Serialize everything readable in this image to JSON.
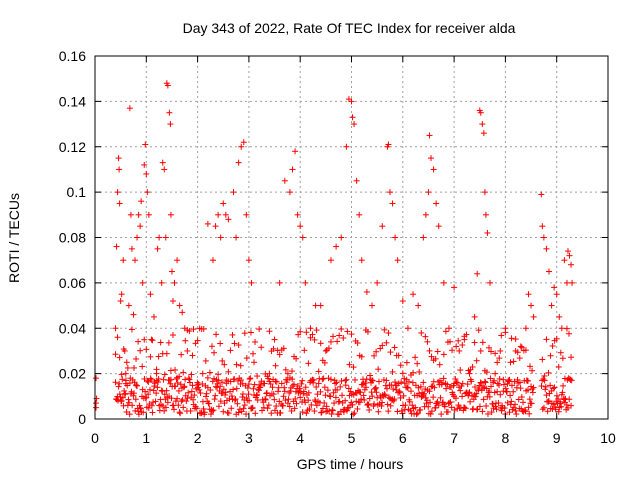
{
  "chart_data": {
    "type": "scatter",
    "title": "Day 343 of 2022, Rate Of TEC Index for receiver alda",
    "xlabel": "GPS time / hours",
    "ylabel": "ROTI / TECUs",
    "xlim": [
      0,
      10
    ],
    "ylim": [
      0,
      0.16
    ],
    "xticks": [
      "0",
      "1",
      "2",
      "3",
      "4",
      "5",
      "6",
      "7",
      "8",
      "9",
      "10"
    ],
    "yticks": [
      "0",
      "0.02",
      "0.04",
      "0.06",
      "0.08",
      "0.1",
      "0.12",
      "0.14",
      "0.16"
    ],
    "grid": true,
    "marker": "+",
    "color": "#ff0000",
    "series": [
      {
        "x": [
          0.02,
          0.02,
          0.02,
          0.03,
          0.4,
          0.42,
          0.44,
          0.46,
          0.47,
          0.48,
          0.5,
          0.52,
          0.55,
          0.58,
          0.6,
          0.62,
          0.66,
          0.68,
          0.7,
          0.72,
          0.75,
          0.78,
          0.8,
          0.82,
          0.85,
          0.88,
          0.9,
          0.93,
          0.96,
          0.98,
          1.0,
          1.02,
          1.05,
          1.08,
          1.1,
          1.15,
          1.2,
          1.22,
          1.25,
          1.3,
          1.32,
          1.35,
          1.38,
          1.4,
          1.42,
          1.45,
          1.47,
          1.48,
          1.5,
          1.52,
          1.55,
          1.6,
          1.65,
          1.7,
          1.75,
          1.8,
          1.9,
          2.0,
          2.1,
          2.2,
          2.3,
          2.35,
          2.4,
          2.45,
          2.5,
          2.55,
          2.6,
          2.7,
          2.75,
          2.8,
          2.85,
          2.9,
          2.95,
          3.0,
          3.05,
          3.1,
          3.2,
          3.4,
          3.5,
          3.6,
          3.7,
          3.8,
          3.85,
          3.9,
          3.95,
          4.0,
          4.05,
          4.1,
          4.2,
          4.3,
          4.4,
          4.5,
          4.6,
          4.7,
          4.8,
          4.9,
          4.95,
          5.0,
          5.02,
          5.05,
          5.1,
          5.15,
          5.2,
          5.3,
          5.4,
          5.5,
          5.6,
          5.7,
          5.72,
          5.75,
          5.8,
          5.85,
          5.9,
          6.0,
          6.1,
          6.2,
          6.3,
          6.4,
          6.45,
          6.5,
          6.52,
          6.55,
          6.6,
          6.65,
          6.7,
          6.8,
          6.9,
          7.0,
          7.1,
          7.2,
          7.3,
          7.4,
          7.45,
          7.5,
          7.52,
          7.55,
          7.58,
          7.6,
          7.62,
          7.65,
          7.7,
          7.8,
          7.9,
          8.0,
          8.1,
          8.2,
          8.3,
          8.4,
          8.45,
          8.5,
          8.55,
          8.7,
          8.72,
          8.75,
          8.8,
          8.85,
          8.9,
          8.95,
          9.0,
          9.05,
          9.1,
          9.15,
          9.2,
          9.22,
          9.25,
          9.28,
          9.3
        ],
        "y": [
          0.007,
          0.018,
          0.005,
          0.009,
          0.04,
          0.076,
          0.1,
          0.115,
          0.11,
          0.095,
          0.052,
          0.055,
          0.07,
          0.03,
          0.02,
          0.025,
          0.05,
          0.137,
          0.09,
          0.075,
          0.046,
          0.07,
          0.015,
          0.08,
          0.09,
          0.085,
          0.096,
          0.06,
          0.112,
          0.121,
          0.108,
          0.1,
          0.09,
          0.055,
          0.035,
          0.045,
          0.02,
          0.075,
          0.08,
          0.06,
          0.113,
          0.11,
          0.08,
          0.148,
          0.147,
          0.135,
          0.13,
          0.09,
          0.065,
          0.052,
          0.06,
          0.07,
          0.05,
          0.047,
          0.04,
          0.03,
          0.028,
          0.015,
          0.02,
          0.086,
          0.07,
          0.085,
          0.09,
          0.08,
          0.095,
          0.09,
          0.088,
          0.1,
          0.08,
          0.113,
          0.12,
          0.122,
          0.09,
          0.07,
          0.06,
          0.025,
          0.015,
          0.02,
          0.035,
          0.06,
          0.105,
          0.1,
          0.11,
          0.118,
          0.09,
          0.085,
          0.08,
          0.06,
          0.04,
          0.05,
          0.05,
          0.03,
          0.07,
          0.076,
          0.08,
          0.12,
          0.141,
          0.14,
          0.133,
          0.13,
          0.105,
          0.09,
          0.07,
          0.056,
          0.05,
          0.06,
          0.085,
          0.12,
          0.121,
          0.1,
          0.095,
          0.08,
          0.07,
          0.052,
          0.04,
          0.055,
          0.05,
          0.08,
          0.09,
          0.1,
          0.125,
          0.115,
          0.11,
          0.095,
          0.085,
          0.06,
          0.04,
          0.058,
          0.03,
          0.035,
          0.02,
          0.045,
          0.064,
          0.136,
          0.135,
          0.13,
          0.126,
          0.1,
          0.09,
          0.082,
          0.06,
          0.02,
          0.03,
          0.04,
          0.025,
          0.03,
          0.032,
          0.04,
          0.055,
          0.05,
          0.045,
          0.099,
          0.085,
          0.08,
          0.075,
          0.065,
          0.05,
          0.058,
          0.055,
          0.045,
          0.04,
          0.07,
          0.06,
          0.074,
          0.072,
          0.068,
          0.06
        ],
        "baseline": {
          "description_free": true,
          "x_start": [
            0.4,
            0.0
          ],
          "x_end": [
            9.3,
            0.0
          ],
          "y_low": 0.002,
          "y_high": 0.018
        }
      }
    ]
  }
}
